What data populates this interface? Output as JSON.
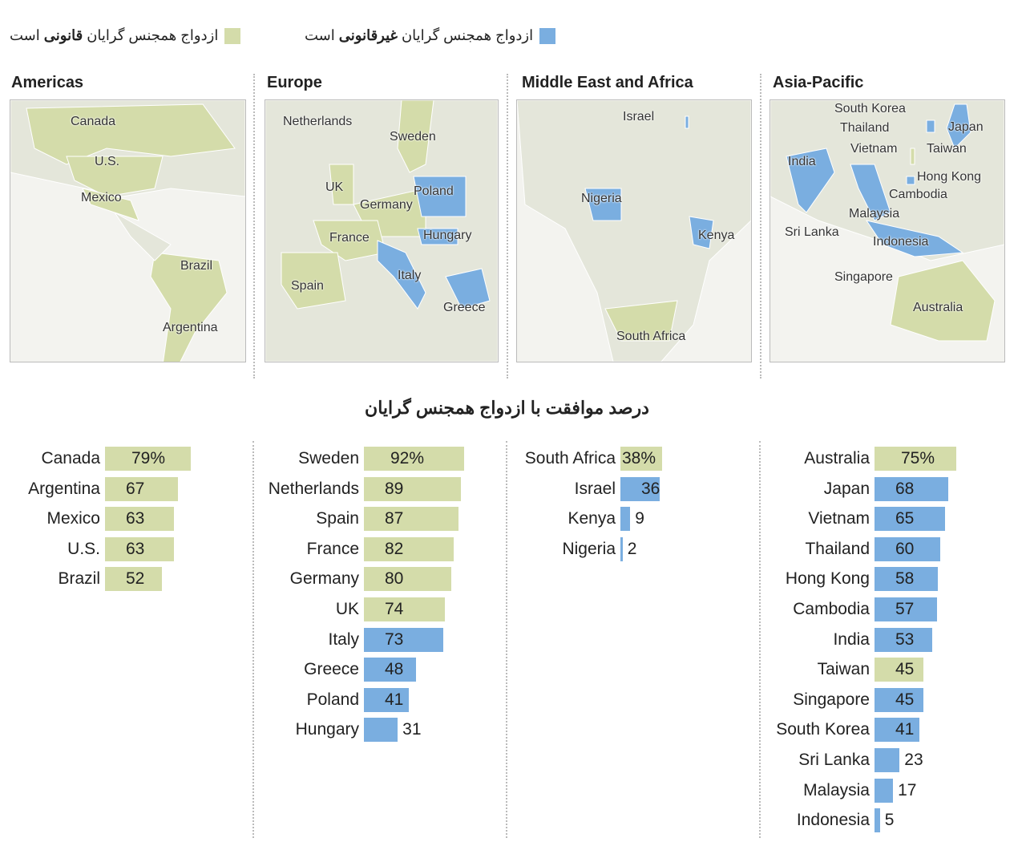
{
  "legend": {
    "illegal": {
      "pre": "ازدواج همجنس گرایان ",
      "bold": "غیرقانونی",
      "post": " است",
      "color": "#7aaee0"
    },
    "legal": {
      "pre": "ازدواج همجنس گرایان ",
      "bold": "قانونی",
      "post": " است",
      "color": "#d4dcaa"
    }
  },
  "colors": {
    "legal": "#d4dcaa",
    "illegal": "#7aaee0",
    "land": "#e6e8dc",
    "water": "#f3f3ef"
  },
  "maps": [
    {
      "title": "Americas",
      "labels": [
        "Canada",
        "U.S.",
        "Mexico",
        "Brazil",
        "Argentina"
      ]
    },
    {
      "title": "Europe",
      "labels": [
        "Netherlands",
        "Sweden",
        "UK",
        "Poland",
        "Germany",
        "France",
        "Hungary",
        "Spain",
        "Italy",
        "Greece"
      ]
    },
    {
      "title": "Middle East and Africa",
      "labels": [
        "Israel",
        "Nigeria",
        "Kenya",
        "South Africa"
      ]
    },
    {
      "title": "Asia-Pacific",
      "labels": [
        "South Korea",
        "Thailand",
        "Japan",
        "Vietnam",
        "Taiwan",
        "India",
        "Hong Kong",
        "Cambodia",
        "Malaysia",
        "Sri Lanka",
        "Indonesia",
        "Singapore",
        "Australia"
      ]
    }
  ],
  "chart_data": {
    "type": "bar",
    "title": "درصد موافقت با ازدواج همجنس گرایان",
    "unit": "%",
    "xlim": [
      0,
      100
    ],
    "groups": [
      {
        "region": "Americas",
        "items": [
          {
            "country": "Canada",
            "value": 79,
            "label": "79%",
            "legal": true
          },
          {
            "country": "Argentina",
            "value": 67,
            "label": "67",
            "legal": true
          },
          {
            "country": "Mexico",
            "value": 63,
            "label": "63",
            "legal": true
          },
          {
            "country": "U.S.",
            "value": 63,
            "label": "63",
            "legal": true
          },
          {
            "country": "Brazil",
            "value": 52,
            "label": "52",
            "legal": true
          }
        ]
      },
      {
        "region": "Europe",
        "items": [
          {
            "country": "Sweden",
            "value": 92,
            "label": "92%",
            "legal": true
          },
          {
            "country": "Netherlands",
            "value": 89,
            "label": "89",
            "legal": true
          },
          {
            "country": "Spain",
            "value": 87,
            "label": "87",
            "legal": true
          },
          {
            "country": "France",
            "value": 82,
            "label": "82",
            "legal": true
          },
          {
            "country": "Germany",
            "value": 80,
            "label": "80",
            "legal": true
          },
          {
            "country": "UK",
            "value": 74,
            "label": "74",
            "legal": true
          },
          {
            "country": "Italy",
            "value": 73,
            "label": "73",
            "legal": false
          },
          {
            "country": "Greece",
            "value": 48,
            "label": "48",
            "legal": false
          },
          {
            "country": "Poland",
            "value": 41,
            "label": "41",
            "legal": false
          },
          {
            "country": "Hungary",
            "value": 31,
            "label": "31",
            "legal": false
          }
        ]
      },
      {
        "region": "Middle East and Africa",
        "items": [
          {
            "country": "South Africa",
            "value": 38,
            "label": "38%",
            "legal": true
          },
          {
            "country": "Israel",
            "value": 36,
            "label": "36",
            "legal": false
          },
          {
            "country": "Kenya",
            "value": 9,
            "label": "9",
            "legal": false
          },
          {
            "country": "Nigeria",
            "value": 2,
            "label": "2",
            "legal": false
          }
        ]
      },
      {
        "region": "Asia-Pacific",
        "items": [
          {
            "country": "Australia",
            "value": 75,
            "label": "75%",
            "legal": true
          },
          {
            "country": "Japan",
            "value": 68,
            "label": "68",
            "legal": false
          },
          {
            "country": "Vietnam",
            "value": 65,
            "label": "65",
            "legal": false
          },
          {
            "country": "Thailand",
            "value": 60,
            "label": "60",
            "legal": false
          },
          {
            "country": "Hong Kong",
            "value": 58,
            "label": "58",
            "legal": false
          },
          {
            "country": "Cambodia",
            "value": 57,
            "label": "57",
            "legal": false
          },
          {
            "country": "India",
            "value": 53,
            "label": "53",
            "legal": false
          },
          {
            "country": "Taiwan",
            "value": 45,
            "label": "45",
            "legal": true
          },
          {
            "country": "Singapore",
            "value": 45,
            "label": "45",
            "legal": false
          },
          {
            "country": "South Korea",
            "value": 41,
            "label": "41",
            "legal": false
          },
          {
            "country": "Sri Lanka",
            "value": 23,
            "label": "23",
            "legal": false
          },
          {
            "country": "Malaysia",
            "value": 17,
            "label": "17",
            "legal": false
          },
          {
            "country": "Indonesia",
            "value": 5,
            "label": "5",
            "legal": false
          }
        ]
      }
    ]
  }
}
